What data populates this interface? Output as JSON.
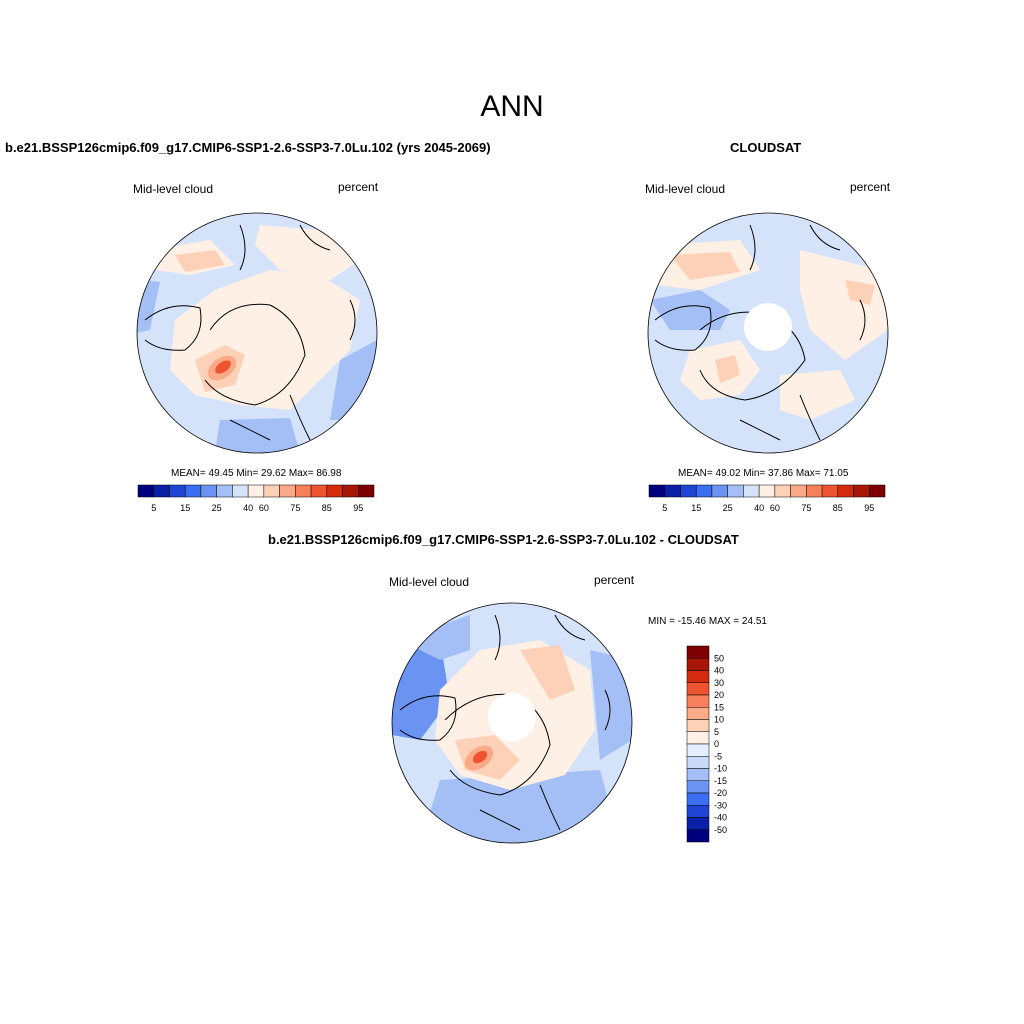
{
  "title": "ANN",
  "panels": [
    {
      "title": "b.e21.BSSP126cmip6.f09_g17.CMIP6-SSP1-2.6-SSP3-7.0Lu.102 (yrs 2045-2069)",
      "variable": "Mid-level cloud",
      "units": "percent",
      "stats": {
        "mean": "49.45",
        "min": "29.62",
        "max": "86.98"
      },
      "stats_text": "MEAN=  49.45  Min=  29.62  Max=  86.98"
    },
    {
      "title": "CLOUDSAT",
      "variable": "Mid-level cloud",
      "units": "percent",
      "stats": {
        "mean": "49.02",
        "min": "37.86",
        "max": "71.05"
      },
      "stats_text": "MEAN=  49.02  Min=  37.86  Max=  71.05"
    },
    {
      "title": "b.e21.BSSP126cmip6.f09_g17.CMIP6-SSP1-2.6-SSP3-7.0Lu.102 - CLOUDSAT",
      "variable": "Mid-level cloud",
      "units": "percent",
      "stats": {
        "min": "-15.46",
        "max": "24.51"
      },
      "stats_text": "MIN = -15.46 MAX =  24.51"
    }
  ],
  "colorbar_abs": {
    "colors": [
      "#00007f",
      "#0a1fa8",
      "#1f45d6",
      "#3b6ef0",
      "#6b93f2",
      "#a4bff5",
      "#d4e3fa",
      "#fff0e6",
      "#fdd0b8",
      "#fbaa88",
      "#f7805a",
      "#ee5430",
      "#d42b0e",
      "#a81605",
      "#7f0000"
    ],
    "tick_labels": [
      "5",
      "15",
      "25",
      "40",
      "60",
      "75",
      "85",
      "95"
    ]
  },
  "colorbar_diff": {
    "colors": [
      "#00007f",
      "#0a1fa8",
      "#1f45d6",
      "#3b6ef0",
      "#6b93f2",
      "#a4bff5",
      "#c9dbf8",
      "#e4eefc",
      "#fff0e6",
      "#fdd0b8",
      "#fbaa88",
      "#f7805a",
      "#ee5430",
      "#d42b0e",
      "#a81605",
      "#7f0000"
    ],
    "tick_labels": [
      "-50",
      "-40",
      "-30",
      "-20",
      "-15",
      "-10",
      "-5",
      "0",
      "5",
      "10",
      "15",
      "20",
      "30",
      "40",
      "50"
    ]
  },
  "map_colors": {
    "ocean_light": "#d4e3fa",
    "light_blue": "#a4bff5",
    "mid_blue": "#6b93f2",
    "peach": "#fff0e6",
    "salmon": "#fdd0b8",
    "orange": "#fbaa88",
    "red": "#ee5430",
    "dark_red": "#d42b0e"
  }
}
